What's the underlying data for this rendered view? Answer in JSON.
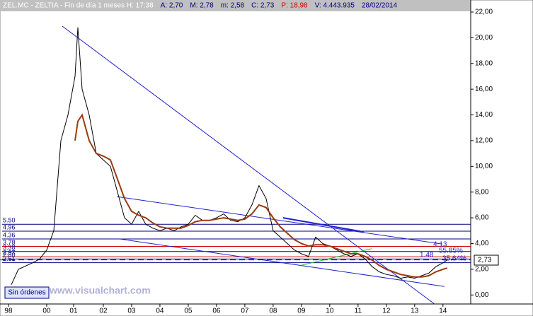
{
  "chart_data": {
    "type": "line",
    "header": [
      {
        "text": "ZEL.MC - ZELTIA - Fin de día 1 meses  H: 17:38",
        "color": "#ffffff"
      },
      {
        "text": "A: 2,70",
        "color": "#000080"
      },
      {
        "text": "M: 2,78",
        "color": "#000080"
      },
      {
        "text": "m: 2,58",
        "color": "#000080"
      },
      {
        "text": "C: 2,73",
        "color": "#000080"
      },
      {
        "text": "P: 18,98",
        "color": "#d00000"
      },
      {
        "text": "V: 4.443.935",
        "color": "#000080"
      },
      {
        "text": "28/02/2014",
        "color": "#000080"
      }
    ],
    "watermark": "www.visualchart.com",
    "button": "Sin órdenes",
    "last_value": "2,73",
    "xlim": [
      1998.35,
      2014.98
    ],
    "ylim": [
      -0.7,
      22.0
    ],
    "xticks": [
      {
        "value": 1998.65,
        "label": "98"
      },
      {
        "value": 2000,
        "label": "00"
      },
      {
        "value": 2000.95,
        "label": "01"
      },
      {
        "value": 2002,
        "label": "02"
      },
      {
        "value": 2003,
        "label": "03"
      },
      {
        "value": 2004,
        "label": "04"
      },
      {
        "value": 2005,
        "label": "05"
      },
      {
        "value": 2006,
        "label": "06"
      },
      {
        "value": 2007,
        "label": "07"
      },
      {
        "value": 2008,
        "label": "08"
      },
      {
        "value": 2009,
        "label": "09"
      },
      {
        "value": 2010,
        "label": "10"
      },
      {
        "value": 2011,
        "label": "11"
      },
      {
        "value": 2012,
        "label": "12"
      },
      {
        "value": 2013,
        "label": "13"
      },
      {
        "value": 2014,
        "label": "14"
      }
    ],
    "yticks": [
      {
        "value": 0,
        "label": "0,00"
      },
      {
        "value": 2,
        "label": "2,00"
      },
      {
        "value": 4,
        "label": "4,00"
      },
      {
        "value": 6,
        "label": "6,00"
      },
      {
        "value": 8,
        "label": "8,00"
      },
      {
        "value": 10,
        "label": "10,00"
      },
      {
        "value": 12,
        "label": "12,00"
      },
      {
        "value": 14,
        "label": "14,00"
      },
      {
        "value": 16,
        "label": "16,00"
      },
      {
        "value": 18,
        "label": "18,00"
      },
      {
        "value": 20,
        "label": "20,00"
      },
      {
        "value": 22,
        "label": "22,00"
      }
    ],
    "x": [
      1998.75,
      1999.0,
      1999.5,
      1999.75,
      2000.0,
      2000.25,
      2000.5,
      2000.75,
      2001.0,
      2001.1,
      2001.25,
      2001.5,
      2001.75,
      2002.0,
      2002.25,
      2002.5,
      2002.75,
      2003.0,
      2003.25,
      2003.5,
      2003.75,
      2004.0,
      2004.25,
      2004.5,
      2004.75,
      2005.0,
      2005.25,
      2005.5,
      2005.75,
      2006.0,
      2006.25,
      2006.5,
      2006.75,
      2007.0,
      2007.25,
      2007.5,
      2007.75,
      2008.0,
      2008.25,
      2008.5,
      2008.75,
      2009.0,
      2009.25,
      2009.5,
      2009.75,
      2010.0,
      2010.25,
      2010.5,
      2010.75,
      2011.0,
      2011.25,
      2011.5,
      2011.75,
      2012.0,
      2012.25,
      2012.5,
      2012.75,
      2013.0,
      2013.25,
      2013.5,
      2013.75,
      2014.0,
      2014.15
    ],
    "series": [
      {
        "color": "#000000",
        "values": [
          0.8,
          2.0,
          2.5,
          2.8,
          3.5,
          5.0,
          12,
          14,
          17,
          20.8,
          16,
          14,
          11,
          10.5,
          10,
          8,
          6,
          5.5,
          6.5,
          5.5,
          5.2,
          5.0,
          5.2,
          5.0,
          5.3,
          5.5,
          6.2,
          5.8,
          5.8,
          6.0,
          6.3,
          5.8,
          5.7,
          6.0,
          7.0,
          8.5,
          7.5,
          5.0,
          4.5,
          4.0,
          3.5,
          3.2,
          3.0,
          4.5,
          4.0,
          3.8,
          3.5,
          3.2,
          3.0,
          3.2,
          2.8,
          2.2,
          1.8,
          1.6,
          1.5,
          1.3,
          1.4,
          1.3,
          1.5,
          1.7,
          2.2,
          2.5,
          2.73
        ]
      },
      {
        "color": "#9a3a10",
        "values": [
          null,
          null,
          null,
          null,
          null,
          null,
          null,
          null,
          12,
          13.5,
          14,
          12,
          11,
          10.8,
          10.5,
          9,
          7.5,
          6.5,
          6.2,
          6.0,
          5.6,
          5.3,
          5.2,
          5.2,
          5.2,
          5.4,
          5.7,
          5.8,
          5.8,
          5.9,
          6.0,
          5.9,
          5.8,
          5.9,
          6.3,
          7.0,
          6.8,
          6.0,
          5.3,
          4.8,
          4.3,
          4.0,
          3.8,
          3.9,
          3.9,
          3.8,
          3.6,
          3.4,
          3.2,
          3.2,
          3.0,
          2.7,
          2.3,
          2.0,
          1.8,
          1.6,
          1.5,
          1.4,
          1.4,
          1.5,
          1.8,
          2.0,
          2.1
        ]
      }
    ],
    "trendlines": [
      {
        "color": "#2020d0",
        "x": [
          2000.55,
          2013.7
        ],
        "y": [
          20.9,
          -0.7
        ]
      },
      {
        "color": "#2020d0",
        "x": [
          2002.6,
          2014.05
        ],
        "y": [
          4.35,
          0.66
        ]
      },
      {
        "color": "#2020d0",
        "x": [
          2002.48,
          2013.98
        ],
        "y": [
          7.65,
          3.96
        ]
      },
      {
        "color": "#2020d0",
        "x": [
          2008.35,
          2011.2
        ],
        "y": [
          6.0,
          4.9
        ]
      },
      {
        "color": "#20c020",
        "x": [
          2008.98,
          2011.48
        ],
        "y": [
          2.3,
          3.6
        ]
      }
    ],
    "levels": [
      {
        "value": 5.5,
        "label": "5.50",
        "color": "#000080"
      },
      {
        "value": 4.96,
        "label": "4.96",
        "color": "#000080"
      },
      {
        "value": 4.36,
        "label": "4.36",
        "color": "#000080"
      },
      {
        "value": 3.78,
        "label": "3.78",
        "color": "#d00000"
      },
      {
        "value": 3.38,
        "label": "3.38",
        "color": "#000080"
      },
      {
        "value": 2.97,
        "label": "2.97",
        "color": "#d00000"
      },
      {
        "value": 2.8,
        "label": "2.80",
        "color": "#000080"
      },
      {
        "value": 2.51,
        "label": "2.51",
        "color": "#000080"
      }
    ],
    "annotations": [
      "4.13",
      "55.85%",
      "1.48",
      "35.64%"
    ]
  }
}
